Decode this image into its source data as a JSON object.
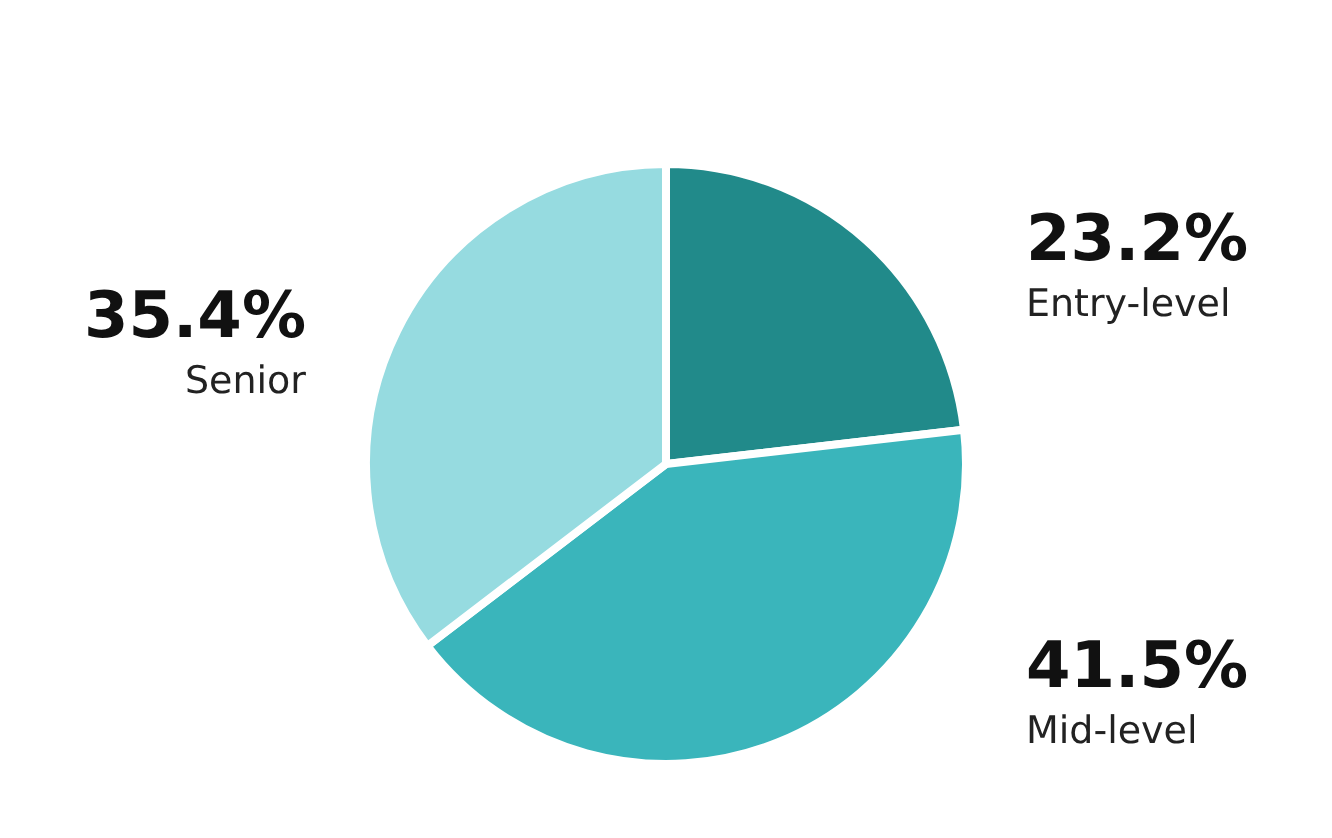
{
  "chart_data": {
    "type": "pie",
    "categories": [
      "Entry-level",
      "Mid-level",
      "Senior"
    ],
    "values": [
      23.2,
      41.5,
      35.4
    ],
    "value_labels": [
      "23.2%",
      "41.5%",
      "35.4%"
    ],
    "colors": [
      "#218a8a",
      "#3ab5bb",
      "#96dbe0"
    ]
  }
}
